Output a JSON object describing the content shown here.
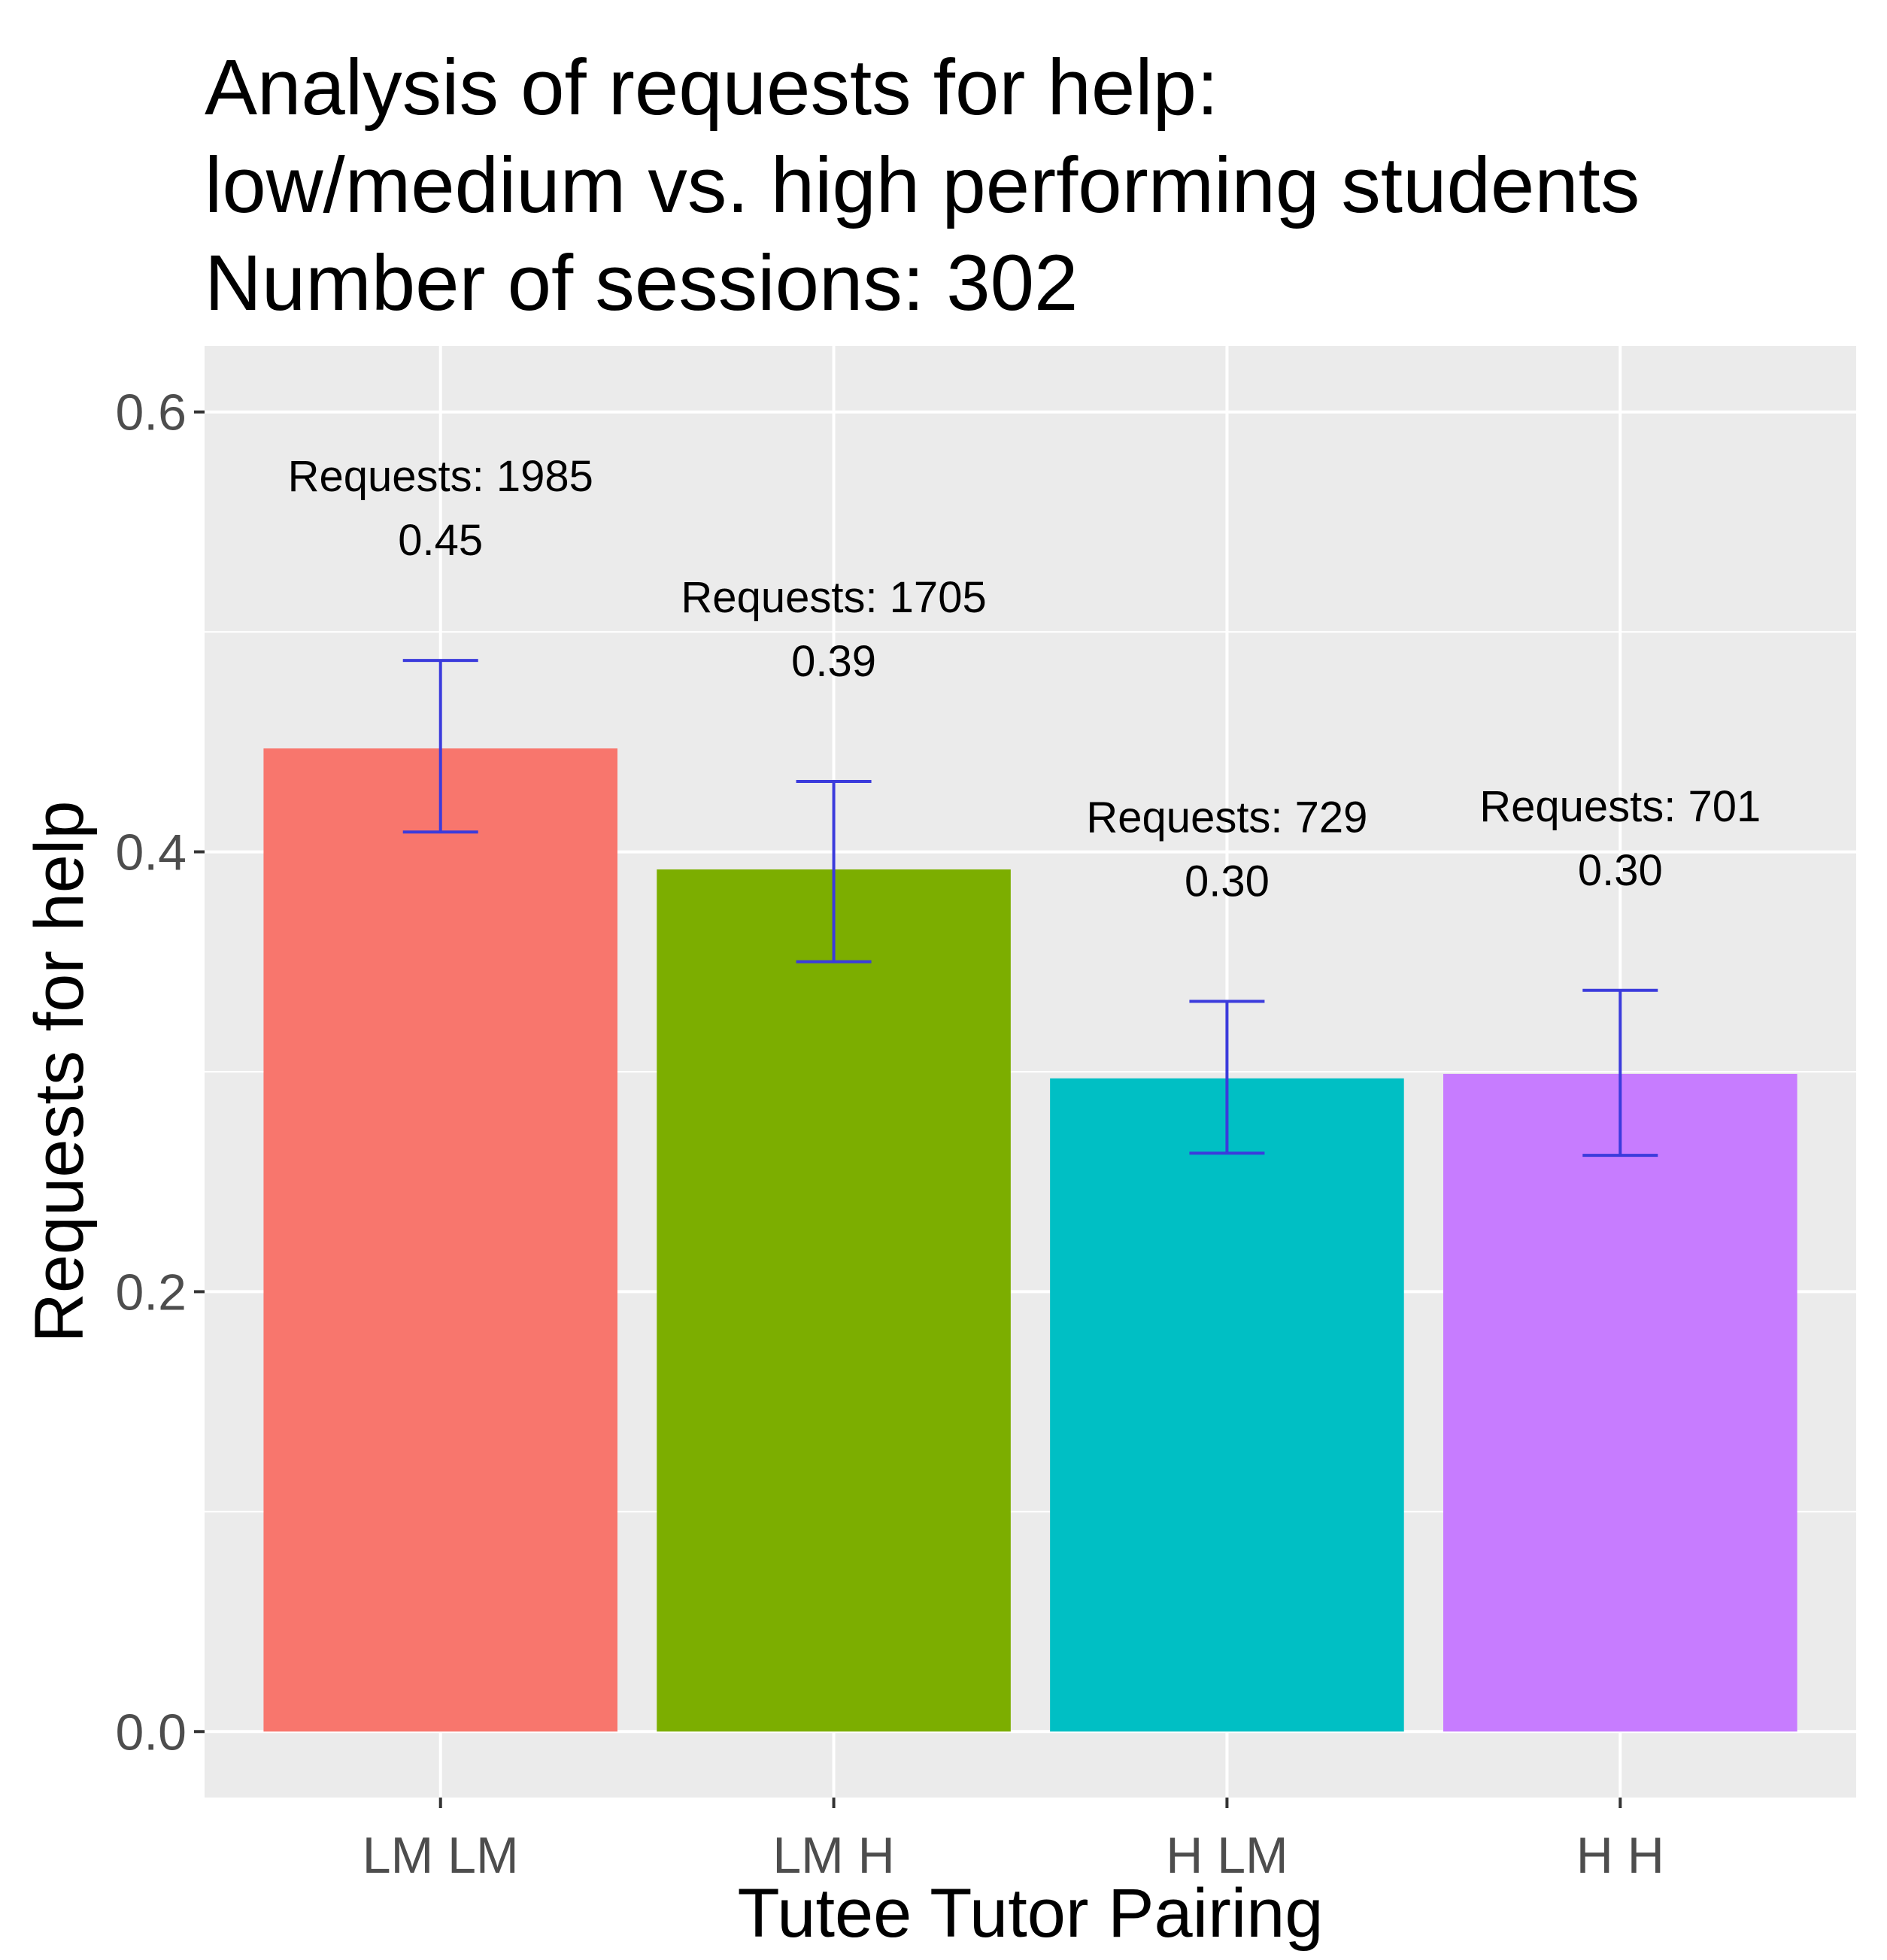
{
  "chart_data": {
    "type": "bar",
    "title_lines": [
      "Analysis of requests for help:",
      "low/medium vs. high performing students",
      "Number of sessions: 302"
    ],
    "xlabel": "Tutee Tutor Pairing",
    "ylabel": "Requests for help",
    "categories": [
      "LM LM",
      "LM H",
      "H LM",
      "H H"
    ],
    "values": [
      0.447,
      0.392,
      0.297,
      0.299
    ],
    "error_low": [
      0.409,
      0.35,
      0.263,
      0.262
    ],
    "error_high": [
      0.487,
      0.432,
      0.332,
      0.337
    ],
    "requests_labels": [
      "Requests: 1985",
      "Requests: 1705",
      "Requests: 729",
      "Requests: 701"
    ],
    "value_labels": [
      "0.45",
      "0.39",
      "0.30",
      "0.30"
    ],
    "colors": [
      "#F8766D",
      "#7CAE00",
      "#00BFC4",
      "#C77CFF"
    ],
    "error_bar_color": "#3b3bdc",
    "panel_color": "#EBEBEB",
    "ylim": [
      -0.03,
      0.63
    ],
    "yticks": [
      0.0,
      0.2,
      0.4,
      0.6
    ],
    "ytick_labels": [
      "0.0",
      "0.2",
      "0.4",
      "0.6"
    ],
    "grid": true,
    "legend": "none"
  }
}
